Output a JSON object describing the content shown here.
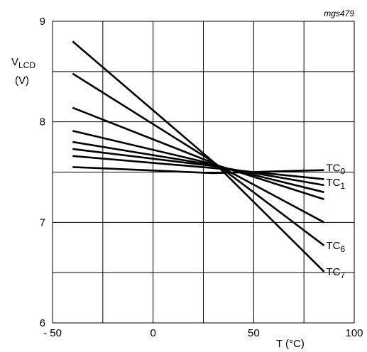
{
  "chart_data": {
    "type": "line",
    "code": "mgs479",
    "xlabel": "T (°C)",
    "ylabel": {
      "main": "V",
      "sub": "LCD",
      "unit": "(V)"
    },
    "xlim": [
      -50,
      100
    ],
    "ylim": [
      6,
      9
    ],
    "x_ticks": [
      {
        "value": -50,
        "label": "- 50"
      },
      {
        "value": 0,
        "label": "0"
      },
      {
        "value": 50,
        "label": "50"
      },
      {
        "value": 100,
        "label": "100"
      }
    ],
    "y_ticks": [
      {
        "value": 6,
        "label": "6"
      },
      {
        "value": 7,
        "label": "7"
      },
      {
        "value": 8,
        "label": "8"
      },
      {
        "value": 9,
        "label": "9"
      }
    ],
    "grid_x": [
      -25,
      0,
      25,
      50,
      75
    ],
    "grid_y": [
      6.5,
      7,
      7.5,
      8,
      8.5
    ],
    "series": [
      {
        "name": "TC0",
        "x": [
          -40,
          30,
          85
        ],
        "y": [
          7.55,
          7.49,
          7.52
        ]
      },
      {
        "name": "",
        "x": [
          -40,
          30,
          85
        ],
        "y": [
          7.66,
          7.54,
          7.43
        ]
      },
      {
        "name": "TC1",
        "x": [
          -40,
          30,
          85
        ],
        "y": [
          7.73,
          7.56,
          7.37
        ]
      },
      {
        "name": "",
        "x": [
          -40,
          30,
          85
        ],
        "y": [
          7.8,
          7.57,
          7.3
        ]
      },
      {
        "name": "",
        "x": [
          -40,
          30,
          85
        ],
        "y": [
          7.91,
          7.58,
          7.23
        ]
      },
      {
        "name": "",
        "x": [
          -40,
          30,
          85
        ],
        "y": [
          8.14,
          7.59,
          7.0
        ]
      },
      {
        "name": "TC6",
        "x": [
          -40,
          30,
          85
        ],
        "y": [
          8.48,
          7.6,
          6.77
        ]
      },
      {
        "name": "TC7",
        "x": [
          -40,
          30,
          85
        ],
        "y": [
          8.8,
          7.6,
          6.51
        ]
      }
    ],
    "series_labels": [
      {
        "main": "TC",
        "sub": "0",
        "at_series": 0
      },
      {
        "main": "TC",
        "sub": "1",
        "at_series": 2
      },
      {
        "main": "TC",
        "sub": "6",
        "at_series": 6
      },
      {
        "main": "TC",
        "sub": "7",
        "at_series": 7
      }
    ]
  }
}
